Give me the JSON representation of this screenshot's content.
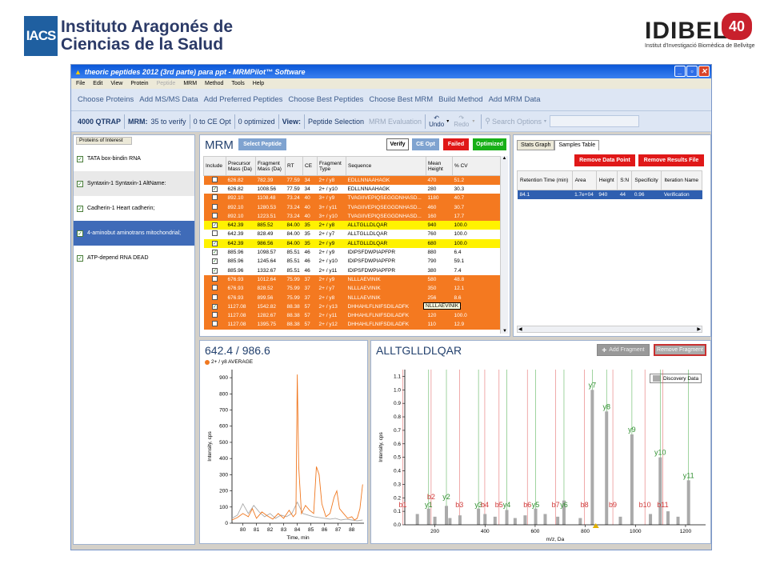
{
  "logos": {
    "iacs_short": "IACS",
    "iacs_line1": "Instituto Aragonés de",
    "iacs_line2": "Ciencias de la Salud",
    "idibell": "IDIBELL",
    "idibell_sub": "Institut d'Investigació Biomèdica de Bellvitge"
  },
  "window": {
    "title": "theoric peptides 2012 (3rd parte) para ppt - MRMPilot™ Software"
  },
  "menu": [
    "File",
    "Edit",
    "View",
    "Protein",
    "Peptide",
    "MRM",
    "Method",
    "Tools",
    "Help"
  ],
  "menu_disabled": "Peptide",
  "workflow": [
    "Choose Proteins",
    "Add MS/MS Data",
    "Add Preferred Peptides",
    "Choose Best Peptides",
    "Choose Best MRM",
    "Build Method",
    "Add MRM Data"
  ],
  "toolbar": {
    "instrument": "4000 QTRAP",
    "mrm_label": "MRM:",
    "to_verify": "35  to verify",
    "to_ce": "0  to CE Opt",
    "optimized": "0  optimized",
    "view_label": "View:",
    "peptide_selection": "Peptide Selection",
    "mrm_evaluation": "MRM Evaluation",
    "undo": "Undo",
    "redo": "Redo",
    "search_placeholder": "Search Options"
  },
  "proteins": {
    "header": "Proteins of Interest",
    "items": [
      {
        "label": "TATA box-bindin RNA",
        "state": "normal"
      },
      {
        "label": "Syntaxin-1 Syntaxin-1 AltName:",
        "state": "alt"
      },
      {
        "label": "Cadherin-1 Heart cadherin;",
        "state": "normal"
      },
      {
        "label": "4-aminobut aminotrans mitochondrial;",
        "state": "selected"
      },
      {
        "label": "ATP-depend RNA DEAD",
        "state": "normal"
      }
    ]
  },
  "mrm": {
    "title": "MRM",
    "buttons": {
      "select_peptide": "Select Peptide",
      "verify": "Verify",
      "ce_opt": "CE Opt",
      "failed": "Failed",
      "optimized": "Optimized"
    },
    "columns": [
      "Include",
      "Precursor Mass (Da)",
      "Fragment Mass (Da)",
      "RT",
      "CE",
      "Fragment Type",
      "Sequence",
      "Mean Height",
      "% CV"
    ],
    "rows": [
      {
        "c": "orange",
        "chk": false,
        "pm": "626.82",
        "fm": "782.39",
        "rt": "77.59",
        "ce": "34",
        "ft": "2+ / y8",
        "seq": "EDLLNNAAHAGK",
        "mh": "470",
        "cv": "51.2"
      },
      {
        "c": "white",
        "chk": true,
        "pm": "626.82",
        "fm": "1008.56",
        "rt": "77.59",
        "ce": "34",
        "ft": "2+ / y10",
        "seq": "EDLLNNAAHAGK",
        "mh": "280",
        "cv": "30.3"
      },
      {
        "c": "orange",
        "chk": false,
        "pm": "892.10",
        "fm": "1108.48",
        "rt": "73.24",
        "ce": "40",
        "ft": "3+ / y9",
        "seq": "TVAGIIVEPIQSEGGDNHASD...",
        "mh": "1180",
        "cv": "40.7"
      },
      {
        "c": "orange",
        "chk": false,
        "pm": "892.10",
        "fm": "1280.53",
        "rt": "73.24",
        "ce": "40",
        "ft": "3+ / y11",
        "seq": "TVAGIIVEPIQSEGGDNHASD...",
        "mh": "460",
        "cv": "30.7"
      },
      {
        "c": "orange",
        "chk": false,
        "pm": "892.10",
        "fm": "1223.51",
        "rt": "73.24",
        "ce": "40",
        "ft": "3+ / y10",
        "seq": "TVAGIIVEPIQSEGGDNHASD...",
        "mh": "160",
        "cv": "17.7"
      },
      {
        "c": "yellow",
        "chk": true,
        "pm": "642.39",
        "fm": "885.52",
        "rt": "84.00",
        "ce": "35",
        "ft": "2+ / y8",
        "seq": "ALLTGLLDLQAR",
        "mh": "940",
        "cv": "100.0"
      },
      {
        "c": "white",
        "chk": false,
        "pm": "642.39",
        "fm": "828.49",
        "rt": "84.00",
        "ce": "35",
        "ft": "2+ / y7",
        "seq": "ALLTGLLDLQAR",
        "mh": "760",
        "cv": "100.0"
      },
      {
        "c": "yellow",
        "chk": true,
        "pm": "642.39",
        "fm": "986.56",
        "rt": "84.00",
        "ce": "35",
        "ft": "2+ / y9",
        "seq": "ALLTGLLDLQAR",
        "mh": "680",
        "cv": "100.0"
      },
      {
        "c": "white",
        "chk": true,
        "pm": "885.96",
        "fm": "1098.57",
        "rt": "85.51",
        "ce": "46",
        "ft": "2+ / y9",
        "seq": "IDIPSFDWPIAPFPR",
        "mh": "880",
        "cv": "6.4"
      },
      {
        "c": "white",
        "chk": true,
        "pm": "885.96",
        "fm": "1245.64",
        "rt": "85.51",
        "ce": "46",
        "ft": "2+ / y10",
        "seq": "IDIPSFDWPIAPFPR",
        "mh": "790",
        "cv": "59.1"
      },
      {
        "c": "white",
        "chk": true,
        "pm": "885.96",
        "fm": "1332.67",
        "rt": "85.51",
        "ce": "46",
        "ft": "2+ / y11",
        "seq": "IDIPSFDWPIAPFPR",
        "mh": "380",
        "cv": "7.4"
      },
      {
        "c": "orange",
        "chk": false,
        "pm": "676.93",
        "fm": "1012.64",
        "rt": "75.99",
        "ce": "37",
        "ft": "2+ / y9",
        "seq": "NLLLAEVINIK",
        "mh": "580",
        "cv": "48.8"
      },
      {
        "c": "orange",
        "chk": false,
        "pm": "676.93",
        "fm": "828.52",
        "rt": "75.99",
        "ce": "37",
        "ft": "2+ / y7",
        "seq": "NLLLAEVINIK",
        "mh": "350",
        "cv": "12.1"
      },
      {
        "c": "orange",
        "chk": false,
        "pm": "676.93",
        "fm": "899.56",
        "rt": "75.99",
        "ce": "37",
        "ft": "2+ / y8",
        "seq": "NLLLAEVINIK",
        "mh": "256",
        "cv": "8.6"
      },
      {
        "c": "orange",
        "chk": true,
        "pm": "1127.08",
        "fm": "1542.82",
        "rt": "88.38",
        "ce": "57",
        "ft": "2+ / y13",
        "seq": "DHHAHLFLNIFSDILADFK",
        "mh": "250",
        "cv": "7.4"
      },
      {
        "c": "orange",
        "chk": false,
        "pm": "1127.08",
        "fm": "1282.67",
        "rt": "88.38",
        "ce": "57",
        "ft": "2+ / y11",
        "seq": "DHHAHLFLNIFSDILADFK",
        "mh": "120",
        "cv": "100.0"
      },
      {
        "c": "orange",
        "chk": false,
        "pm": "1127.08",
        "fm": "1395.75",
        "rt": "88.38",
        "ce": "57",
        "ft": "2+ / y12",
        "seq": "DHHAHLFLNIFSDILADFK",
        "mh": "110",
        "cv": "12.9"
      }
    ],
    "tooltip": "NLLLAEVINIK"
  },
  "stats": {
    "tabs": [
      "Stats Graph",
      "Samples Table"
    ],
    "active_tab": "Samples Table",
    "remove_data_point": "Remove Data Point",
    "remove_results_file": "Remove Results File",
    "columns": [
      "Retention Time (min)",
      "Area",
      "Height",
      "S:N",
      "Specificity",
      "Iteration Name"
    ],
    "row": [
      "84.1",
      "1.7e+04",
      "940",
      "44",
      "0.96",
      "Verification"
    ]
  },
  "xic": {
    "title": "642.4 / 986.6",
    "legend": "2+ / y8 AVERAGE",
    "xlabel": "Time, min",
    "ylabel": "Intensity, cps",
    "xticks": [
      "80",
      "81",
      "82",
      "83",
      "84",
      "85",
      "86",
      "87",
      "88"
    ],
    "yticks": [
      "0",
      "100",
      "200",
      "300",
      "400",
      "500",
      "600",
      "700",
      "800",
      "900"
    ]
  },
  "spectrum": {
    "title": "ALLTGLLDLQAR",
    "add_fragment": "Add Fragment",
    "remove_fragment": "Remove Fragment",
    "legend": "Discovery Data",
    "xlabel": "m/z, Da",
    "ylabel": "Intensity, cps",
    "xticks": [
      "200",
      "400",
      "600",
      "800",
      "1000",
      "1200"
    ],
    "yticks": [
      "0.0",
      "0.1",
      "0.2",
      "0.3",
      "0.4",
      "0.5",
      "0.6",
      "0.7",
      "0.8",
      "0.9",
      "1.0",
      "1.1"
    ],
    "ion_labels": [
      {
        "t": "b1",
        "mz": 72
      },
      {
        "t": "y1",
        "mz": 175
      },
      {
        "t": "b2",
        "mz": 185
      },
      {
        "t": "y2",
        "mz": 246
      },
      {
        "t": "b3",
        "mz": 298
      },
      {
        "t": "y3",
        "mz": 374
      },
      {
        "t": "b4",
        "mz": 399
      },
      {
        "t": "y4",
        "mz": 487
      },
      {
        "t": "b5",
        "mz": 456
      },
      {
        "t": "b6",
        "mz": 569
      },
      {
        "t": "y5",
        "mz": 602
      },
      {
        "t": "y6",
        "mz": 715
      },
      {
        "t": "b7",
        "mz": 682
      },
      {
        "t": "b8",
        "mz": 797
      },
      {
        "t": "y7",
        "mz": 828
      },
      {
        "t": "y8",
        "mz": 885
      },
      {
        "t": "b9",
        "mz": 910
      },
      {
        "t": "y9",
        "mz": 986
      },
      {
        "t": "b10",
        "mz": 1038
      },
      {
        "t": "b11",
        "mz": 1109
      },
      {
        "t": "y10",
        "mz": 1099
      },
      {
        "t": "y11",
        "mz": 1212
      }
    ]
  },
  "chart_data": [
    {
      "type": "line",
      "title": "642.4 / 986.6",
      "xlabel": "Time, min",
      "ylabel": "Intensity, cps",
      "xlim": [
        79.2,
        88.9
      ],
      "ylim": [
        0,
        950
      ],
      "series": [
        {
          "name": "2+ / y8 AVERAGE",
          "color": "#f07820",
          "x": [
            79.2,
            79.6,
            80.0,
            80.4,
            80.7,
            81.0,
            81.4,
            81.8,
            82.2,
            82.6,
            83.0,
            83.4,
            83.7,
            83.9,
            84.0,
            84.1,
            84.3,
            84.6,
            84.9,
            85.2,
            85.4,
            85.6,
            85.8,
            86.1,
            86.4,
            86.7,
            86.9,
            87.1,
            87.4,
            87.7,
            88.0,
            88.2,
            88.4,
            88.6,
            88.8
          ],
          "y": [
            20,
            35,
            60,
            40,
            90,
            30,
            70,
            45,
            25,
            60,
            30,
            80,
            40,
            60,
            920,
            350,
            60,
            110,
            80,
            60,
            350,
            300,
            120,
            40,
            60,
            160,
            200,
            90,
            60,
            30,
            40,
            20,
            30,
            90,
            240
          ]
        },
        {
          "color": "#aaaaaa",
          "x": [
            79.2,
            79.6,
            80.0,
            80.4,
            80.8,
            81.2,
            81.6,
            82.0,
            82.4,
            82.8,
            83.2,
            83.6,
            84.0,
            84.4,
            84.8,
            85.2,
            85.6,
            86.0,
            86.4,
            86.8,
            87.2,
            87.6,
            88.0,
            88.4,
            88.8
          ],
          "y": [
            30,
            50,
            120,
            60,
            110,
            70,
            40,
            60,
            30,
            50,
            40,
            60,
            130,
            60,
            50,
            40,
            35,
            30,
            25,
            30,
            20,
            25,
            20,
            15,
            20
          ]
        }
      ]
    },
    {
      "type": "bar",
      "title": "ALLTGLLDLQAR",
      "xlabel": "m/z, Da",
      "ylabel": "Intensity, cps",
      "xlim": [
        80,
        1280
      ],
      "ylim": [
        0,
        1.15
      ],
      "series": [
        {
          "name": "Discovery Data",
          "color": "#aaaaaa",
          "x": [
            130,
            175,
            200,
            246,
            260,
            300,
            374,
            400,
            440,
            487,
            520,
            560,
            602,
            640,
            690,
            715,
            780,
            828,
            885,
            940,
            986,
            1060,
            1099,
            1130,
            1170,
            1212
          ],
          "values": [
            0.08,
            0.12,
            0.06,
            0.14,
            0.05,
            0.07,
            0.12,
            0.08,
            0.06,
            0.11,
            0.05,
            0.07,
            0.12,
            0.08,
            0.06,
            0.18,
            0.05,
            1.0,
            0.84,
            0.06,
            0.67,
            0.08,
            0.5,
            0.1,
            0.06,
            0.33
          ]
        }
      ]
    }
  ]
}
